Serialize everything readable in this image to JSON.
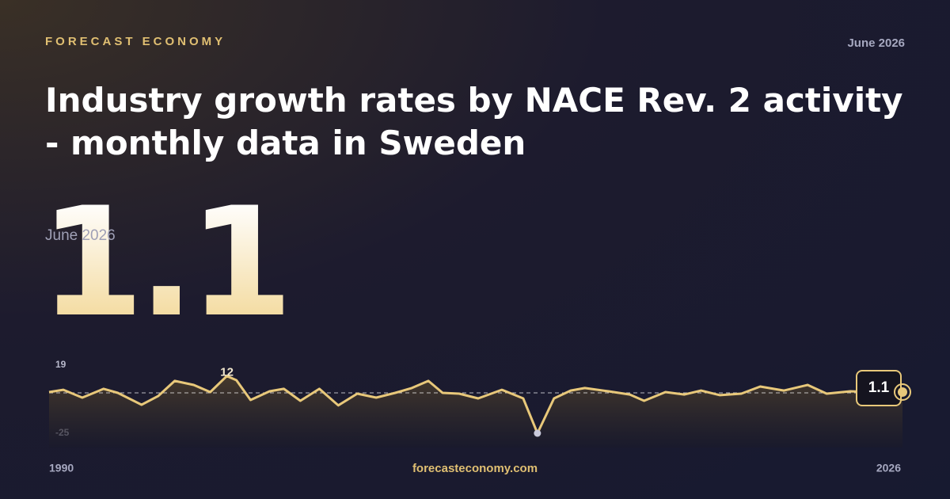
{
  "brand": "FORECAST ECONOMY",
  "date": "June 2026",
  "title": "Industry growth rates by NACE Rev. 2 activity - monthly data in Sweden",
  "site": "forecasteconomy.com",
  "chart_data": {
    "type": "line",
    "x": [
      1990.0,
      1990.6,
      1991.4,
      1992.3,
      1992.9,
      1993.9,
      1994.6,
      1995.3,
      1996.1,
      1996.8,
      1997.5,
      1997.9,
      1998.5,
      1999.3,
      1999.9,
      2000.6,
      2001.4,
      2002.2,
      2003.0,
      2003.8,
      2004.6,
      2005.3,
      2006.0,
      2006.6,
      2007.3,
      2008.1,
      2009.1,
      2010.0,
      2010.6,
      2011.3,
      2012.0,
      2012.6,
      2013.6,
      2014.5,
      2015.1,
      2016.0,
      2016.8,
      2017.5,
      2018.3,
      2019.2,
      2020.0,
      2021.0,
      2022.0,
      2022.8,
      2023.8,
      2024.7,
      2026.0
    ],
    "series": [
      {
        "color": "#e8c87a",
        "values": [
          1.6,
          3.1,
          -2,
          3.7,
          1.1,
          -6.6,
          -1,
          8.8,
          6.2,
          1.6,
          12,
          9.3,
          -3.5,
          2.1,
          3.7,
          -4,
          3.7,
          -7,
          0.6,
          -2,
          1.1,
          4.2,
          8.8,
          1.1,
          0.6,
          -2.5,
          3.1,
          -2.5,
          -25,
          -2.5,
          2.6,
          4.2,
          2.1,
          0,
          -4,
          1.6,
          0,
          2.6,
          -0.4,
          0.6,
          5.2,
          2.6,
          6.2,
          0.6,
          2.1,
          1.6,
          1.1
        ]
      }
    ],
    "xlim": [
      1990,
      2026
    ],
    "xticks": [
      1990,
      2026
    ],
    "ylim": [
      -25,
      19
    ],
    "yticks": [
      19,
      -25
    ]
  }
}
